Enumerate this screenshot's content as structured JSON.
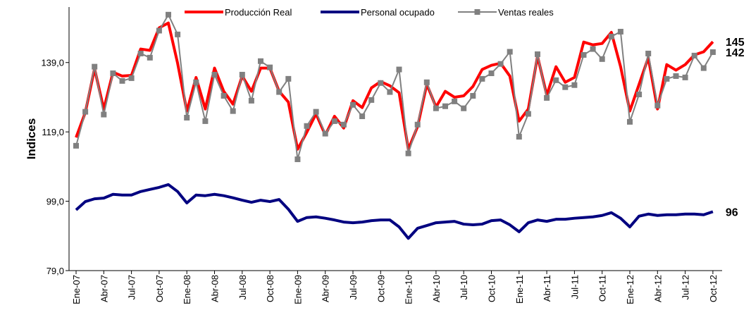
{
  "chart_data": {
    "type": "line",
    "y_label": "Indices",
    "categories": [
      "Ene-07",
      null,
      null,
      "Abr-07",
      null,
      null,
      "Jul-07",
      null,
      null,
      "Oct-07",
      null,
      null,
      "Ene-08",
      null,
      null,
      "Abr-08",
      null,
      null,
      "Jul-08",
      null,
      null,
      "Oct-08",
      null,
      null,
      "Ene-09",
      null,
      null,
      "Abr-09",
      null,
      null,
      "Jul-09",
      null,
      null,
      "Oct-09",
      null,
      null,
      "Ene-10",
      null,
      null,
      "Abr-10",
      null,
      null,
      "Jul-10",
      null,
      null,
      "Oct-10",
      null,
      null,
      "Ene-11",
      null,
      null,
      "Abr-11",
      null,
      null,
      "Jul-11",
      null,
      null,
      "Oct-11",
      null,
      null,
      "Ene-12",
      null,
      null,
      "Abr-12",
      null,
      null,
      "Jul-12",
      null,
      null,
      "Oct-12"
    ],
    "series": [
      {
        "name": "Producción Real",
        "color": "#ff0000",
        "marker": "none",
        "end_label": "145",
        "end_label_color": "#ff0000",
        "values": [
          117.4,
          124.6,
          137.2,
          125.6,
          136.2,
          135.1,
          135.3,
          142.9,
          142.5,
          149.0,
          150.4,
          138.8,
          125.0,
          134.7,
          125.6,
          137.4,
          130.7,
          127.0,
          135.1,
          130.7,
          137.4,
          137.4,
          130.7,
          127.6,
          114.0,
          118.9,
          124.2,
          118.1,
          123.5,
          120.1,
          128.0,
          126.0,
          131.7,
          133.5,
          132.3,
          130.3,
          114.0,
          120.5,
          132.7,
          126.2,
          130.7,
          129.0,
          129.4,
          132.1,
          137.0,
          138.2,
          138.8,
          135.1,
          122.1,
          125.6,
          140.8,
          129.6,
          137.8,
          133.3,
          134.7,
          144.9,
          144.1,
          144.5,
          147.7,
          137.8,
          125.0,
          132.7,
          140.4,
          125.6,
          138.4,
          136.8,
          138.4,
          141.2,
          142.1,
          145
        ]
      },
      {
        "name": "Personal ocupado",
        "color": "#000080",
        "marker": "none",
        "end_label": "96",
        "end_label_color": "#254f8c",
        "values": [
          96.5,
          98.9,
          99.7,
          99.9,
          101.0,
          100.8,
          100.8,
          101.8,
          102.4,
          103.0,
          103.8,
          101.8,
          98.5,
          100.8,
          100.6,
          101.0,
          100.6,
          100.0,
          99.3,
          98.7,
          99.3,
          98.9,
          99.5,
          96.7,
          93.2,
          94.3,
          94.5,
          94.1,
          93.6,
          93.0,
          92.8,
          93.0,
          93.4,
          93.6,
          93.6,
          91.6,
          88.3,
          91.2,
          92.0,
          92.8,
          93.0,
          93.2,
          92.4,
          92.2,
          92.4,
          93.4,
          93.6,
          92.2,
          90.2,
          92.8,
          93.6,
          93.2,
          93.8,
          93.8,
          94.1,
          94.3,
          94.5,
          94.9,
          95.7,
          94.1,
          91.6,
          94.7,
          95.3,
          94.9,
          95.1,
          95.1,
          95.3,
          95.3,
          95.1,
          96
        ]
      },
      {
        "name": "Ventas reales",
        "color": "#808080",
        "marker": "square",
        "end_label": "142",
        "end_label_color": "#000000",
        "values": [
          115.0,
          124.8,
          137.8,
          124.0,
          135.9,
          133.7,
          134.5,
          141.6,
          140.4,
          148.2,
          152.8,
          147.1,
          123.1,
          133.3,
          122.1,
          135.5,
          129.4,
          125.0,
          135.5,
          128.0,
          139.4,
          137.6,
          130.5,
          134.3,
          111.1,
          120.7,
          124.8,
          118.5,
          122.1,
          121.1,
          126.8,
          123.5,
          128.2,
          133.1,
          130.5,
          137.0,
          112.8,
          121.1,
          133.3,
          125.8,
          126.4,
          127.8,
          125.8,
          129.4,
          134.3,
          135.9,
          138.6,
          142.1,
          117.6,
          124.2,
          141.4,
          128.8,
          133.9,
          131.9,
          132.5,
          141.2,
          142.9,
          140.0,
          146.5,
          147.9,
          121.9,
          129.8,
          141.6,
          126.6,
          134.3,
          135.1,
          134.7,
          141.0,
          137.4,
          142
        ]
      }
    ],
    "ylim": [
      79,
      155
    ],
    "yticks": [
      {
        "value": 79,
        "label": "79,0"
      },
      {
        "value": 99,
        "label": "99,0"
      },
      {
        "value": 119,
        "label": "119,0"
      },
      {
        "value": 139,
        "label": "139,0"
      }
    ],
    "grid": false
  }
}
